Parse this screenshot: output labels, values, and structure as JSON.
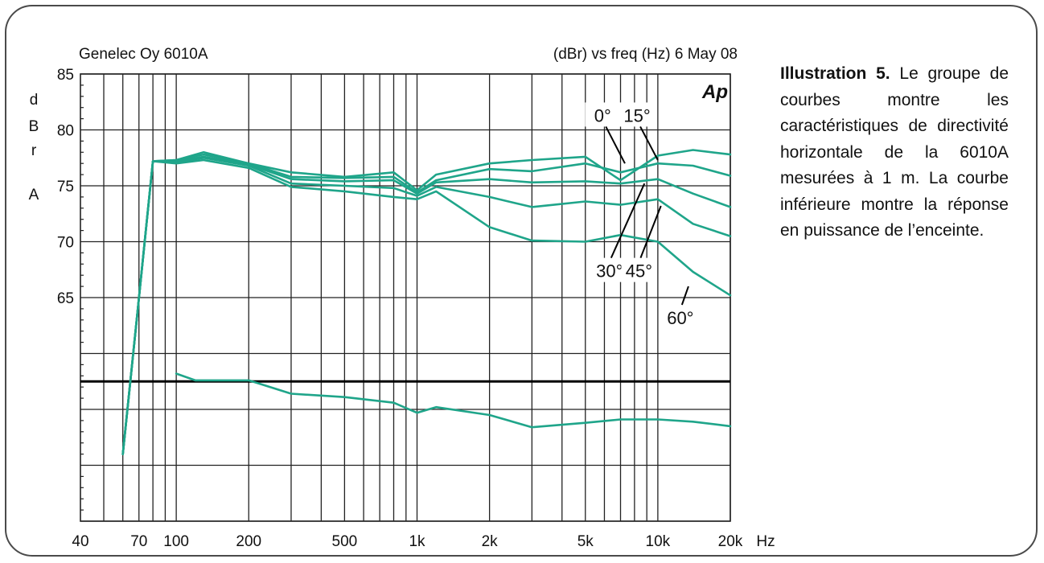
{
  "chart_data": {
    "type": "line",
    "title_left": "Genelec Oy 6010A",
    "title_right": "(dBr) vs freq (Hz) 6 May 08",
    "logo": "Ap",
    "ylabel": "dBrA",
    "ylabel_chars": [
      "d",
      "B",
      "r",
      "A"
    ],
    "xlabel": "Hz",
    "x_scale": "log",
    "xlim": [
      40,
      20000
    ],
    "ylim": [
      45,
      85
    ],
    "x_tick_labels": [
      "40",
      "70",
      "100",
      "200",
      "500",
      "1k",
      "2k",
      "5k",
      "10k",
      "20k"
    ],
    "x_tick_values": [
      40,
      70,
      100,
      200,
      500,
      1000,
      2000,
      5000,
      10000,
      20000
    ],
    "y_tick_labels": [
      "85",
      "80",
      "75",
      "70",
      "65"
    ],
    "y_tick_values": [
      85,
      80,
      75,
      70,
      65
    ],
    "grid": true,
    "reference_line_y": 57.5,
    "line_color": "#1fa58a",
    "series": [
      {
        "name": "0°",
        "points": [
          [
            60,
            51
          ],
          [
            70,
            65
          ],
          [
            80,
            77.2
          ],
          [
            100,
            77.3
          ],
          [
            130,
            78
          ],
          [
            200,
            77
          ],
          [
            300,
            76.2
          ],
          [
            500,
            75.8
          ],
          [
            800,
            76.2
          ],
          [
            1000,
            74.6
          ],
          [
            1200,
            76
          ],
          [
            2000,
            77
          ],
          [
            3000,
            77.3
          ],
          [
            5000,
            77.6
          ],
          [
            7000,
            75.5
          ],
          [
            10000,
            77.7
          ],
          [
            14000,
            78.2
          ],
          [
            20000,
            77.8
          ]
        ]
      },
      {
        "name": "15°",
        "points": [
          [
            60,
            51
          ],
          [
            70,
            65
          ],
          [
            80,
            77.2
          ],
          [
            100,
            77.3
          ],
          [
            130,
            77.8
          ],
          [
            200,
            77
          ],
          [
            300,
            75.8
          ],
          [
            500,
            75.7
          ],
          [
            800,
            75.8
          ],
          [
            1000,
            74.4
          ],
          [
            1200,
            75.5
          ],
          [
            2000,
            76.5
          ],
          [
            3000,
            76.3
          ],
          [
            5000,
            77
          ],
          [
            7000,
            76.2
          ],
          [
            10000,
            77
          ],
          [
            14000,
            76.8
          ],
          [
            20000,
            75.9
          ]
        ]
      },
      {
        "name": "30°",
        "points": [
          [
            60,
            51
          ],
          [
            70,
            65
          ],
          [
            80,
            77.2
          ],
          [
            100,
            77.2
          ],
          [
            130,
            77.6
          ],
          [
            200,
            76.9
          ],
          [
            300,
            75.6
          ],
          [
            500,
            75.4
          ],
          [
            800,
            75.5
          ],
          [
            1000,
            74.3
          ],
          [
            1200,
            75.3
          ],
          [
            2000,
            75.6
          ],
          [
            3000,
            75.3
          ],
          [
            5000,
            75.4
          ],
          [
            7000,
            75.2
          ],
          [
            10000,
            75.6
          ],
          [
            14000,
            74.3
          ],
          [
            20000,
            73.1
          ]
        ]
      },
      {
        "name": "45°",
        "points": [
          [
            60,
            51
          ],
          [
            70,
            65
          ],
          [
            80,
            77.2
          ],
          [
            100,
            77.1
          ],
          [
            130,
            77.5
          ],
          [
            200,
            76.8
          ],
          [
            300,
            75.2
          ],
          [
            500,
            75
          ],
          [
            800,
            74.8
          ],
          [
            1000,
            74.1
          ],
          [
            1200,
            74.9
          ],
          [
            2000,
            74
          ],
          [
            3000,
            73.1
          ],
          [
            5000,
            73.6
          ],
          [
            7000,
            73.3
          ],
          [
            10000,
            73.8
          ],
          [
            14000,
            71.6
          ],
          [
            20000,
            70.5
          ]
        ]
      },
      {
        "name": "60°",
        "points": [
          [
            60,
            51
          ],
          [
            70,
            65
          ],
          [
            80,
            77.2
          ],
          [
            100,
            77
          ],
          [
            130,
            77.3
          ],
          [
            200,
            76.6
          ],
          [
            300,
            74.9
          ],
          [
            500,
            74.5
          ],
          [
            800,
            74
          ],
          [
            1000,
            73.8
          ],
          [
            1200,
            74.5
          ],
          [
            2000,
            71.3
          ],
          [
            3000,
            70.1
          ],
          [
            5000,
            70
          ],
          [
            7000,
            70.6
          ],
          [
            10000,
            70
          ],
          [
            14000,
            67.3
          ],
          [
            20000,
            65.2
          ]
        ]
      },
      {
        "name": "",
        "points": [
          [
            100,
            58.2
          ],
          [
            120,
            57.6
          ],
          [
            200,
            57.6
          ],
          [
            300,
            56.4
          ],
          [
            500,
            56.1
          ],
          [
            800,
            55.6
          ],
          [
            1000,
            54.7
          ],
          [
            1200,
            55.2
          ],
          [
            2000,
            54.5
          ],
          [
            3000,
            53.4
          ],
          [
            5000,
            53.8
          ],
          [
            7000,
            54.1
          ],
          [
            10000,
            54.1
          ],
          [
            14000,
            53.9
          ],
          [
            20000,
            53.5
          ]
        ]
      }
    ],
    "annotations": [
      {
        "text": "0°",
        "label_x": 5900,
        "label_y": 81.3,
        "pointer_x": 7300,
        "pointer_y": 77
      },
      {
        "text": "15°",
        "label_x": 8200,
        "label_y": 81.3,
        "pointer_x": 10000,
        "pointer_y": 77.3
      },
      {
        "text": "30°",
        "label_x": 6300,
        "label_y": 67.4,
        "pointer_x": 8800,
        "pointer_y": 75.2
      },
      {
        "text": "45°",
        "label_x": 8350,
        "label_y": 67.4,
        "pointer_x": 10300,
        "pointer_y": 73.2
      },
      {
        "text": "60°",
        "label_x": 12400,
        "label_y": 63.2,
        "pointer_x": 13400,
        "pointer_y": 66
      }
    ]
  },
  "caption": {
    "lead": "Illustration 5.",
    "text": " Le groupe de courbes montre les caractéristiques de directivité horizontale de la 6010A mesurées à 1 m. La courbe inférieure montre la réponse en puissance de l’enceinte."
  }
}
